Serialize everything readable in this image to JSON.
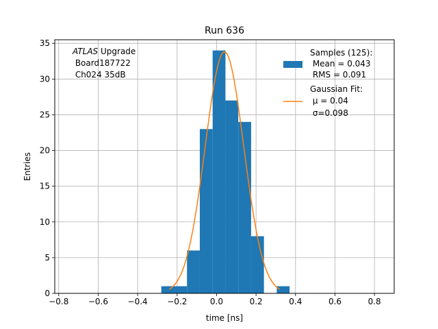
{
  "chart_data": {
    "type": "bar",
    "title": "Run 636",
    "xlabel": "time [ns]",
    "ylabel": "Entries",
    "xlim": [
      -0.82,
      0.9
    ],
    "ylim": [
      0,
      35.5
    ],
    "xticks": [
      -0.8,
      -0.6,
      -0.4,
      -0.2,
      0.0,
      0.2,
      0.4,
      0.6,
      0.8
    ],
    "xtick_labels": [
      "−0.8",
      "−0.6",
      "−0.4",
      "−0.2",
      "0.0",
      "0.2",
      "0.4",
      "0.6",
      "0.8"
    ],
    "yticks": [
      0,
      5,
      10,
      15,
      20,
      25,
      30,
      35
    ],
    "grid": true,
    "legend_position": "top-right",
    "histogram": {
      "bin_edges": [
        -0.28,
        -0.215,
        -0.15,
        -0.085,
        -0.02,
        0.045,
        0.11,
        0.175,
        0.24,
        0.305,
        0.37
      ],
      "counts": [
        1,
        1,
        6,
        23,
        34,
        27,
        24,
        8,
        0,
        1
      ],
      "color": "#1f77b4"
    },
    "fit": {
      "type": "gaussian",
      "mu": 0.04,
      "sigma": 0.098,
      "amplitude": 33.8,
      "x_range": [
        -0.24,
        0.32
      ],
      "color": "#ff7f0e"
    },
    "annotation": {
      "line1_italic": "ATLAS",
      "line1_rest": " Upgrade",
      "line2": " Board187722",
      "line3": " Ch024 35dB"
    },
    "legend": {
      "samples_title": "Samples (125):",
      "samples_mean": " Mean = 0.043",
      "samples_rms": " RMS = 0.091",
      "fit_title": "Gaussian Fit:",
      "fit_mu": " μ = 0.04",
      "fit_sigma": " σ=0.098"
    }
  }
}
